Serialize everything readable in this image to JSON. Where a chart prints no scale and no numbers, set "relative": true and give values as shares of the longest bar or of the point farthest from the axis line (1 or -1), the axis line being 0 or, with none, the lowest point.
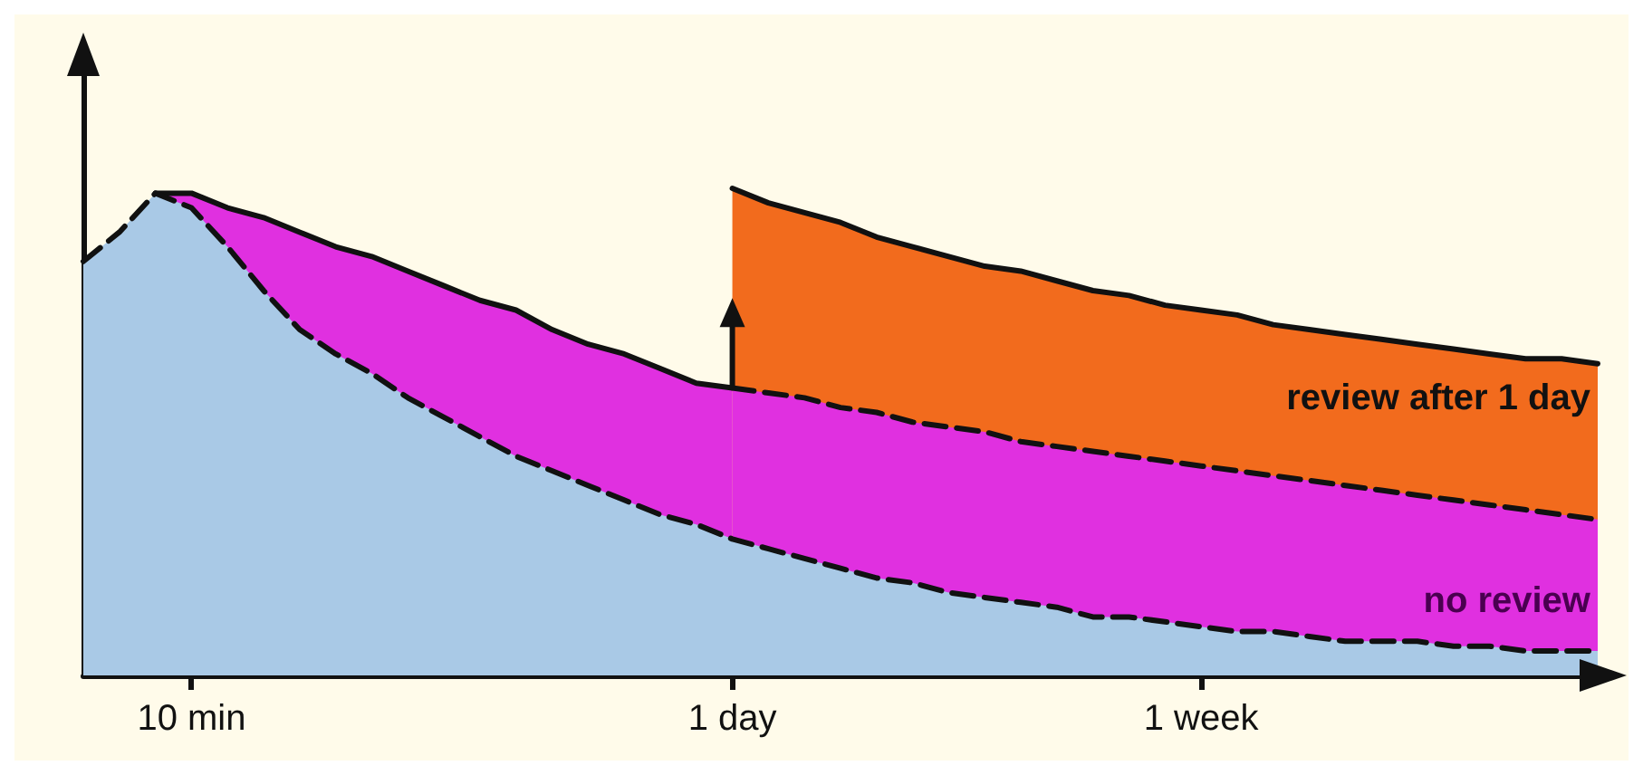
{
  "chart_data": {
    "type": "area",
    "relative": true,
    "marker": "none",
    "grid": false,
    "legend": false,
    "categories": [
      null,
      null,
      null,
      "10 min",
      null,
      null,
      null,
      null,
      null,
      null,
      null,
      null,
      null,
      null,
      null,
      null,
      null,
      null,
      "1 day",
      null,
      null,
      null,
      null,
      null,
      null,
      null,
      null,
      null,
      null,
      null,
      null,
      "1 week",
      null,
      null,
      null,
      null,
      null,
      null,
      null,
      null,
      null,
      null,
      null
    ],
    "series": [
      {
        "name": "review after 1 day",
        "color": "#f26b1d",
        "line_style": "solid",
        "values": [
          null,
          null,
          null,
          null,
          null,
          null,
          null,
          null,
          null,
          null,
          null,
          null,
          null,
          null,
          null,
          null,
          null,
          null,
          1.0,
          0.97,
          0.95,
          0.93,
          0.9,
          0.88,
          0.86,
          0.84,
          0.83,
          0.81,
          0.79,
          0.78,
          0.76,
          0.75,
          0.74,
          0.72,
          0.71,
          0.7,
          0.69,
          0.68,
          0.67,
          0.66,
          0.65,
          0.65,
          0.64
        ]
      },
      {
        "color": "#e030e0",
        "line_style": "solid",
        "values": [
          null,
          null,
          0.99,
          0.99,
          0.96,
          0.94,
          0.91,
          0.88,
          0.86,
          0.83,
          0.8,
          0.77,
          0.75,
          0.71,
          0.68,
          0.66,
          0.63,
          0.6,
          0.59,
          null,
          null,
          null,
          null,
          null,
          null,
          null,
          null,
          null,
          null,
          null,
          null,
          null,
          null,
          null,
          null,
          null,
          null,
          null,
          null,
          null,
          null,
          null,
          null
        ]
      },
      {
        "name": "no review",
        "color": "#e030e0",
        "line_style": "dashed",
        "values": [
          null,
          null,
          null,
          null,
          null,
          null,
          null,
          null,
          null,
          null,
          null,
          null,
          null,
          null,
          null,
          null,
          null,
          null,
          0.59,
          0.58,
          0.57,
          0.55,
          0.54,
          0.52,
          0.51,
          0.5,
          0.48,
          0.47,
          0.46,
          0.45,
          0.44,
          0.43,
          0.42,
          0.41,
          0.4,
          0.39,
          0.38,
          0.37,
          0.36,
          0.35,
          0.34,
          0.33,
          0.32
        ]
      },
      {
        "color": "#a9c9e6",
        "line_style": "dashed",
        "values": [
          0.85,
          0.91,
          0.99,
          0.96,
          0.88,
          0.79,
          0.71,
          0.66,
          0.62,
          0.57,
          0.53,
          0.49,
          0.45,
          0.42,
          0.39,
          0.36,
          0.33,
          0.31,
          0.28,
          0.26,
          0.24,
          0.22,
          0.2,
          0.19,
          0.17,
          0.16,
          0.15,
          0.14,
          0.12,
          0.12,
          0.11,
          0.1,
          0.09,
          0.09,
          0.08,
          0.07,
          0.07,
          0.07,
          0.06,
          0.06,
          0.05,
          0.05,
          0.05
        ]
      }
    ]
  }
}
